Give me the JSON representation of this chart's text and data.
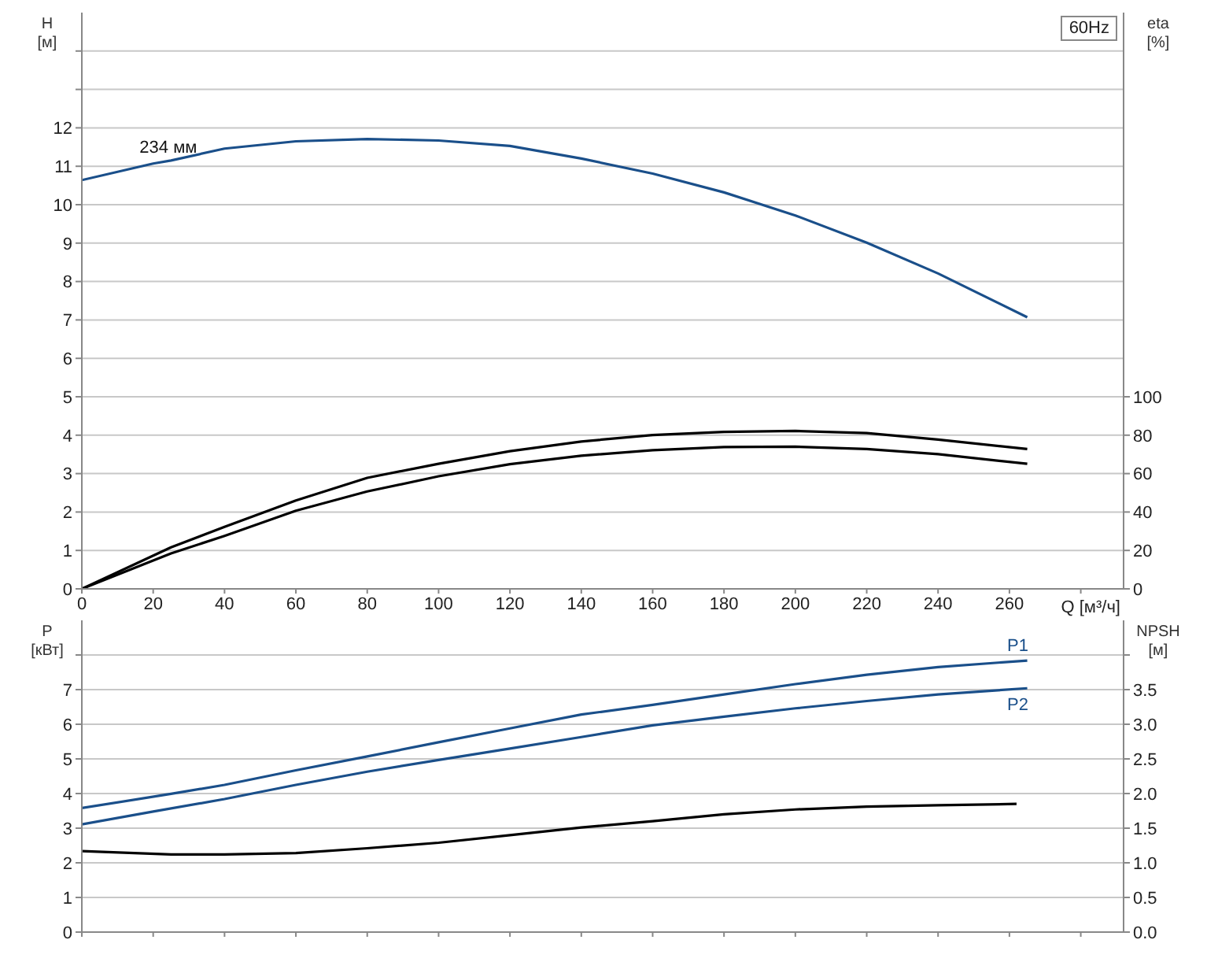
{
  "chart_data": [
    {
      "type": "line",
      "xlabel": "Q [м³/ч]",
      "ylabel": "H [м]",
      "y2label": "eta [%]",
      "xlim": [
        0,
        292
      ],
      "xticks": [
        0,
        20,
        40,
        60,
        80,
        100,
        120,
        140,
        160,
        180,
        200,
        220,
        240,
        260,
        {
          "value": 280,
          "label": null
        }
      ],
      "ylim": [
        0,
        15
      ],
      "yticks": [
        0,
        1,
        2,
        3,
        4,
        5,
        6,
        7,
        8,
        9,
        10,
        11,
        12,
        {
          "value": 13,
          "label": null
        },
        {
          "value": 14,
          "label": null
        }
      ],
      "y2lim": [
        0,
        300
      ],
      "y2ticks": [
        0,
        20,
        40,
        60,
        80,
        100
      ],
      "grid": true,
      "legend": false,
      "marker": "none",
      "series": [
        {
          "color": "#1a4f8a",
          "x": [
            0,
            20,
            25,
            40,
            60,
            80,
            100,
            120,
            140,
            160,
            180,
            200,
            220,
            240,
            265
          ],
          "values": [
            10.64,
            11.07,
            11.15,
            11.46,
            11.65,
            11.71,
            11.67,
            11.53,
            11.2,
            10.81,
            10.32,
            9.72,
            9.01,
            8.21,
            7.07
          ]
        },
        {
          "color": "#000000",
          "axis": "y2",
          "x": [
            0,
            25,
            40,
            60,
            80,
            100,
            120,
            140,
            160,
            180,
            200,
            220,
            240,
            265
          ],
          "values": [
            0,
            21.6,
            32.3,
            46,
            57.8,
            65.1,
            71.7,
            76.7,
            80.1,
            81.7,
            82.2,
            81.1,
            77.7,
            72.8
          ]
        },
        {
          "color": "#000000",
          "axis": "y2",
          "x": [
            0,
            25,
            40,
            60,
            80,
            100,
            120,
            140,
            160,
            180,
            200,
            220,
            240,
            265
          ],
          "values": [
            0,
            18.4,
            27.6,
            40.7,
            50.7,
            58.6,
            64.9,
            69.3,
            72.2,
            73.8,
            74,
            72.8,
            70.1,
            65.1
          ]
        }
      ],
      "annotations": [
        {
          "text": "234 мм",
          "x": 25,
          "y": 11.15
        },
        "60Hz"
      ]
    },
    {
      "type": "line",
      "ylabel": "P [кВт]",
      "y2label": "NPSH [м]",
      "xlim": [
        0,
        292
      ],
      "xticks": [
        0,
        20,
        40,
        60,
        80,
        100,
        120,
        140,
        160,
        180,
        200,
        220,
        240,
        260,
        280
      ],
      "ylim": [
        0,
        9
      ],
      "yticks": [
        0,
        1,
        2,
        3,
        4,
        5,
        6,
        7,
        {
          "value": 8,
          "label": null
        }
      ],
      "y2lim": [
        0,
        4.5
      ],
      "y2ticks": [
        {
          "value": 0,
          "label": "0.0"
        },
        {
          "value": 0.5,
          "label": "0.5"
        },
        {
          "value": 1,
          "label": "1.0"
        },
        {
          "value": 1.5,
          "label": "1.5"
        },
        {
          "value": 2,
          "label": "2.0"
        },
        {
          "value": 2.5,
          "label": "2.5"
        },
        {
          "value": 3,
          "label": "3.0"
        },
        {
          "value": 3.5,
          "label": "3.5"
        },
        {
          "value": 4,
          "label": null
        }
      ],
      "tick_labels": "y",
      "grid": true,
      "legend": false,
      "marker": "none",
      "series": [
        {
          "name": "P1",
          "color": "#1a4f8a",
          "x": [
            0,
            25,
            40,
            60,
            80,
            100,
            120,
            140,
            160,
            180,
            200,
            220,
            240,
            265
          ],
          "values": [
            3.58,
            3.99,
            4.25,
            4.67,
            5.07,
            5.48,
            5.88,
            6.28,
            6.56,
            6.86,
            7.16,
            7.43,
            7.65,
            7.84
          ]
        },
        {
          "name": "P2",
          "color": "#1a4f8a",
          "x": [
            0,
            20,
            40,
            60,
            80,
            100,
            120,
            140,
            160,
            180,
            200,
            220,
            240,
            265
          ],
          "values": [
            3.11,
            3.48,
            3.84,
            4.25,
            4.63,
            4.97,
            5.3,
            5.63,
            5.97,
            6.22,
            6.46,
            6.67,
            6.86,
            7.04
          ]
        },
        {
          "color": "#000000",
          "axis": "y2",
          "x": [
            0,
            25,
            40,
            60,
            80,
            100,
            120,
            140,
            160,
            180,
            200,
            220,
            240,
            262
          ],
          "values": [
            1.17,
            1.12,
            1.12,
            1.14,
            1.21,
            1.29,
            1.4,
            1.51,
            1.6,
            1.7,
            1.77,
            1.81,
            1.83,
            1.85
          ]
        }
      ]
    }
  ]
}
